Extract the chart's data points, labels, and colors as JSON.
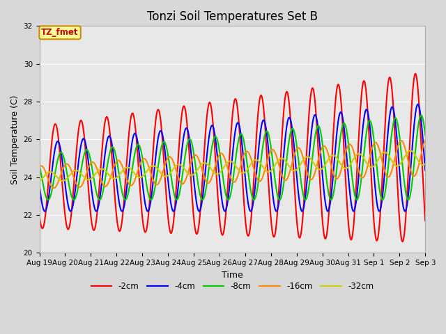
{
  "title": "Tonzi Soil Temperatures Set B",
  "xlabel": "Time",
  "ylabel": "Soil Temperature (C)",
  "ylim": [
    20,
    32
  ],
  "xlim": [
    0,
    15
  ],
  "tick_positions": [
    0,
    1,
    2,
    3,
    4,
    5,
    6,
    7,
    8,
    9,
    10,
    11,
    12,
    13,
    14,
    15
  ],
  "tick_labels": [
    "Aug 19",
    "Aug 20",
    "Aug 21",
    "Aug 22",
    "Aug 23",
    "Aug 24",
    "Aug 25",
    "Aug 26",
    "Aug 27",
    "Aug 28",
    "Aug 29",
    "Aug 30",
    "Aug 31",
    "Sep 1",
    "Sep 2",
    "Sep 3"
  ],
  "yticks": [
    20,
    22,
    24,
    26,
    28,
    30,
    32
  ],
  "series_colors": [
    "#ff0000",
    "#0000ff",
    "#00cc00",
    "#ff8800",
    "#cccc00"
  ],
  "series_labels": [
    "-2cm",
    "-4cm",
    "-8cm",
    "-16cm",
    "-32cm"
  ],
  "line_width": 1.5,
  "legend_label": "TZ_fmet",
  "legend_box_color": "#ffff99",
  "legend_box_edge": "#cc8800",
  "bg_color": "#d8d8d8",
  "plot_bg_color": "#e8e8e8",
  "title_fontsize": 12,
  "axis_fontsize": 9,
  "tick_fontsize": 7.5
}
